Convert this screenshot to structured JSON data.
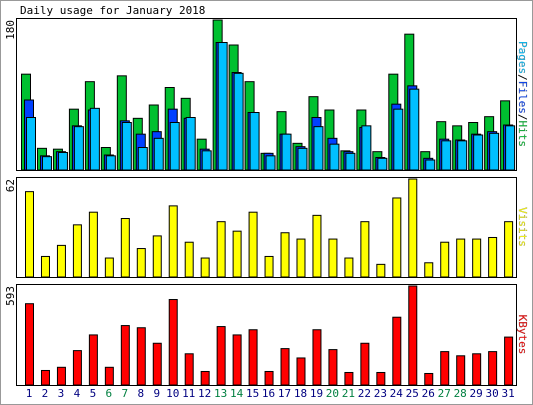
{
  "chart_data": {
    "type": "bar",
    "title": "Daily usage for January 2018",
    "categories": [
      "1",
      "2",
      "3",
      "4",
      "5",
      "6",
      "7",
      "8",
      "9",
      "10",
      "11",
      "12",
      "13",
      "14",
      "15",
      "16",
      "17",
      "18",
      "19",
      "20",
      "21",
      "22",
      "23",
      "24",
      "25",
      "26",
      "27",
      "28",
      "29",
      "30",
      "31"
    ],
    "category_colors": [
      "#000080",
      "#000080",
      "#000080",
      "#000080",
      "#000080",
      "#008040",
      "#008040",
      "#000080",
      "#000080",
      "#000080",
      "#000080",
      "#000080",
      "#008040",
      "#008040",
      "#000080",
      "#000080",
      "#000080",
      "#000080",
      "#000080",
      "#008040",
      "#008040",
      "#000080",
      "#000080",
      "#000080",
      "#000080",
      "#000080",
      "#008040",
      "#008040",
      "#000080",
      "#000080",
      "#000080"
    ],
    "legend_separator": "/",
    "panels": [
      {
        "ylim": [
          0,
          180
        ],
        "yticks": [
          180
        ],
        "legend_order": [
          2,
          1,
          0
        ],
        "series": [
          {
            "name": "Hits",
            "color": "#00c030",
            "values": [
              115,
              26,
              25,
              73,
              106,
              27,
              113,
              62,
              78,
              99,
              86,
              37,
              180,
              150,
              106,
              20,
              70,
              32,
              88,
              72,
              23,
              72,
              22,
              115,
              163,
              22,
              58,
              53,
              57,
              64,
              83
            ]
          },
          {
            "name": "Files",
            "color": "#0040ff",
            "values": [
              84,
              17,
              22,
              53,
              72,
              18,
              59,
              43,
              46,
              73,
              62,
              25,
              153,
              117,
              69,
              20,
              43,
              28,
              63,
              38,
              22,
              51,
              15,
              79,
              101,
              14,
              37,
              36,
              43,
              46,
              54
            ]
          },
          {
            "name": "Pages",
            "color": "#00c0ff",
            "values": [
              63,
              16,
              21,
              52,
              74,
              17,
              57,
              27,
              38,
              57,
              63,
              23,
              153,
              116,
              69,
              17,
              43,
              26,
              52,
              31,
              20,
              53,
              14,
              73,
              97,
              12,
              35,
              35,
              42,
              44,
              53
            ]
          }
        ]
      },
      {
        "ylim": [
          0,
          62
        ],
        "yticks": [
          62
        ],
        "legend_order": [
          0
        ],
        "series": [
          {
            "name": "Visits",
            "color": "#ffff00",
            "values": [
              54,
              13,
              20,
              33,
              41,
              12,
              37,
              18,
              26,
              45,
              22,
              12,
              35,
              29,
              41,
              13,
              28,
              24,
              39,
              24,
              12,
              35,
              8,
              50,
              62,
              9,
              22,
              24,
              24,
              25,
              35
            ]
          }
        ]
      },
      {
        "ylim": [
          0,
          593
        ],
        "yticks": [
          593
        ],
        "legend_order": [
          0
        ],
        "series": [
          {
            "name": "KBytes",
            "color": "#ff0000",
            "values": [
              487,
              87,
              106,
              206,
              300,
              106,
              356,
              343,
              250,
              512,
              187,
              81,
              350,
              300,
              331,
              81,
              218,
              162,
              331,
              212,
              75,
              250,
              75,
              406,
              593,
              69,
              200,
              175,
              187,
              200,
              287
            ]
          }
        ]
      }
    ]
  }
}
